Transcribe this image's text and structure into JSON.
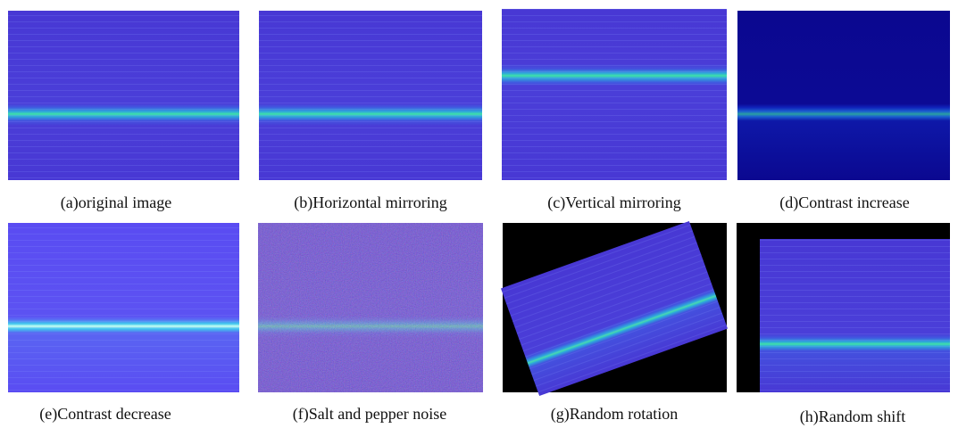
{
  "panels": [
    {
      "caption": "(a)original image"
    },
    {
      "caption": "(b)Horizontal mirroring"
    },
    {
      "caption": "(c)Vertical mirroring"
    },
    {
      "caption": "(d)Contrast increase"
    },
    {
      "caption": "(e)Contrast decrease"
    },
    {
      "caption": "(f)Salt and pepper noise"
    },
    {
      "caption": "(g)Random rotation"
    },
    {
      "caption": "(h)Random shift"
    }
  ]
}
